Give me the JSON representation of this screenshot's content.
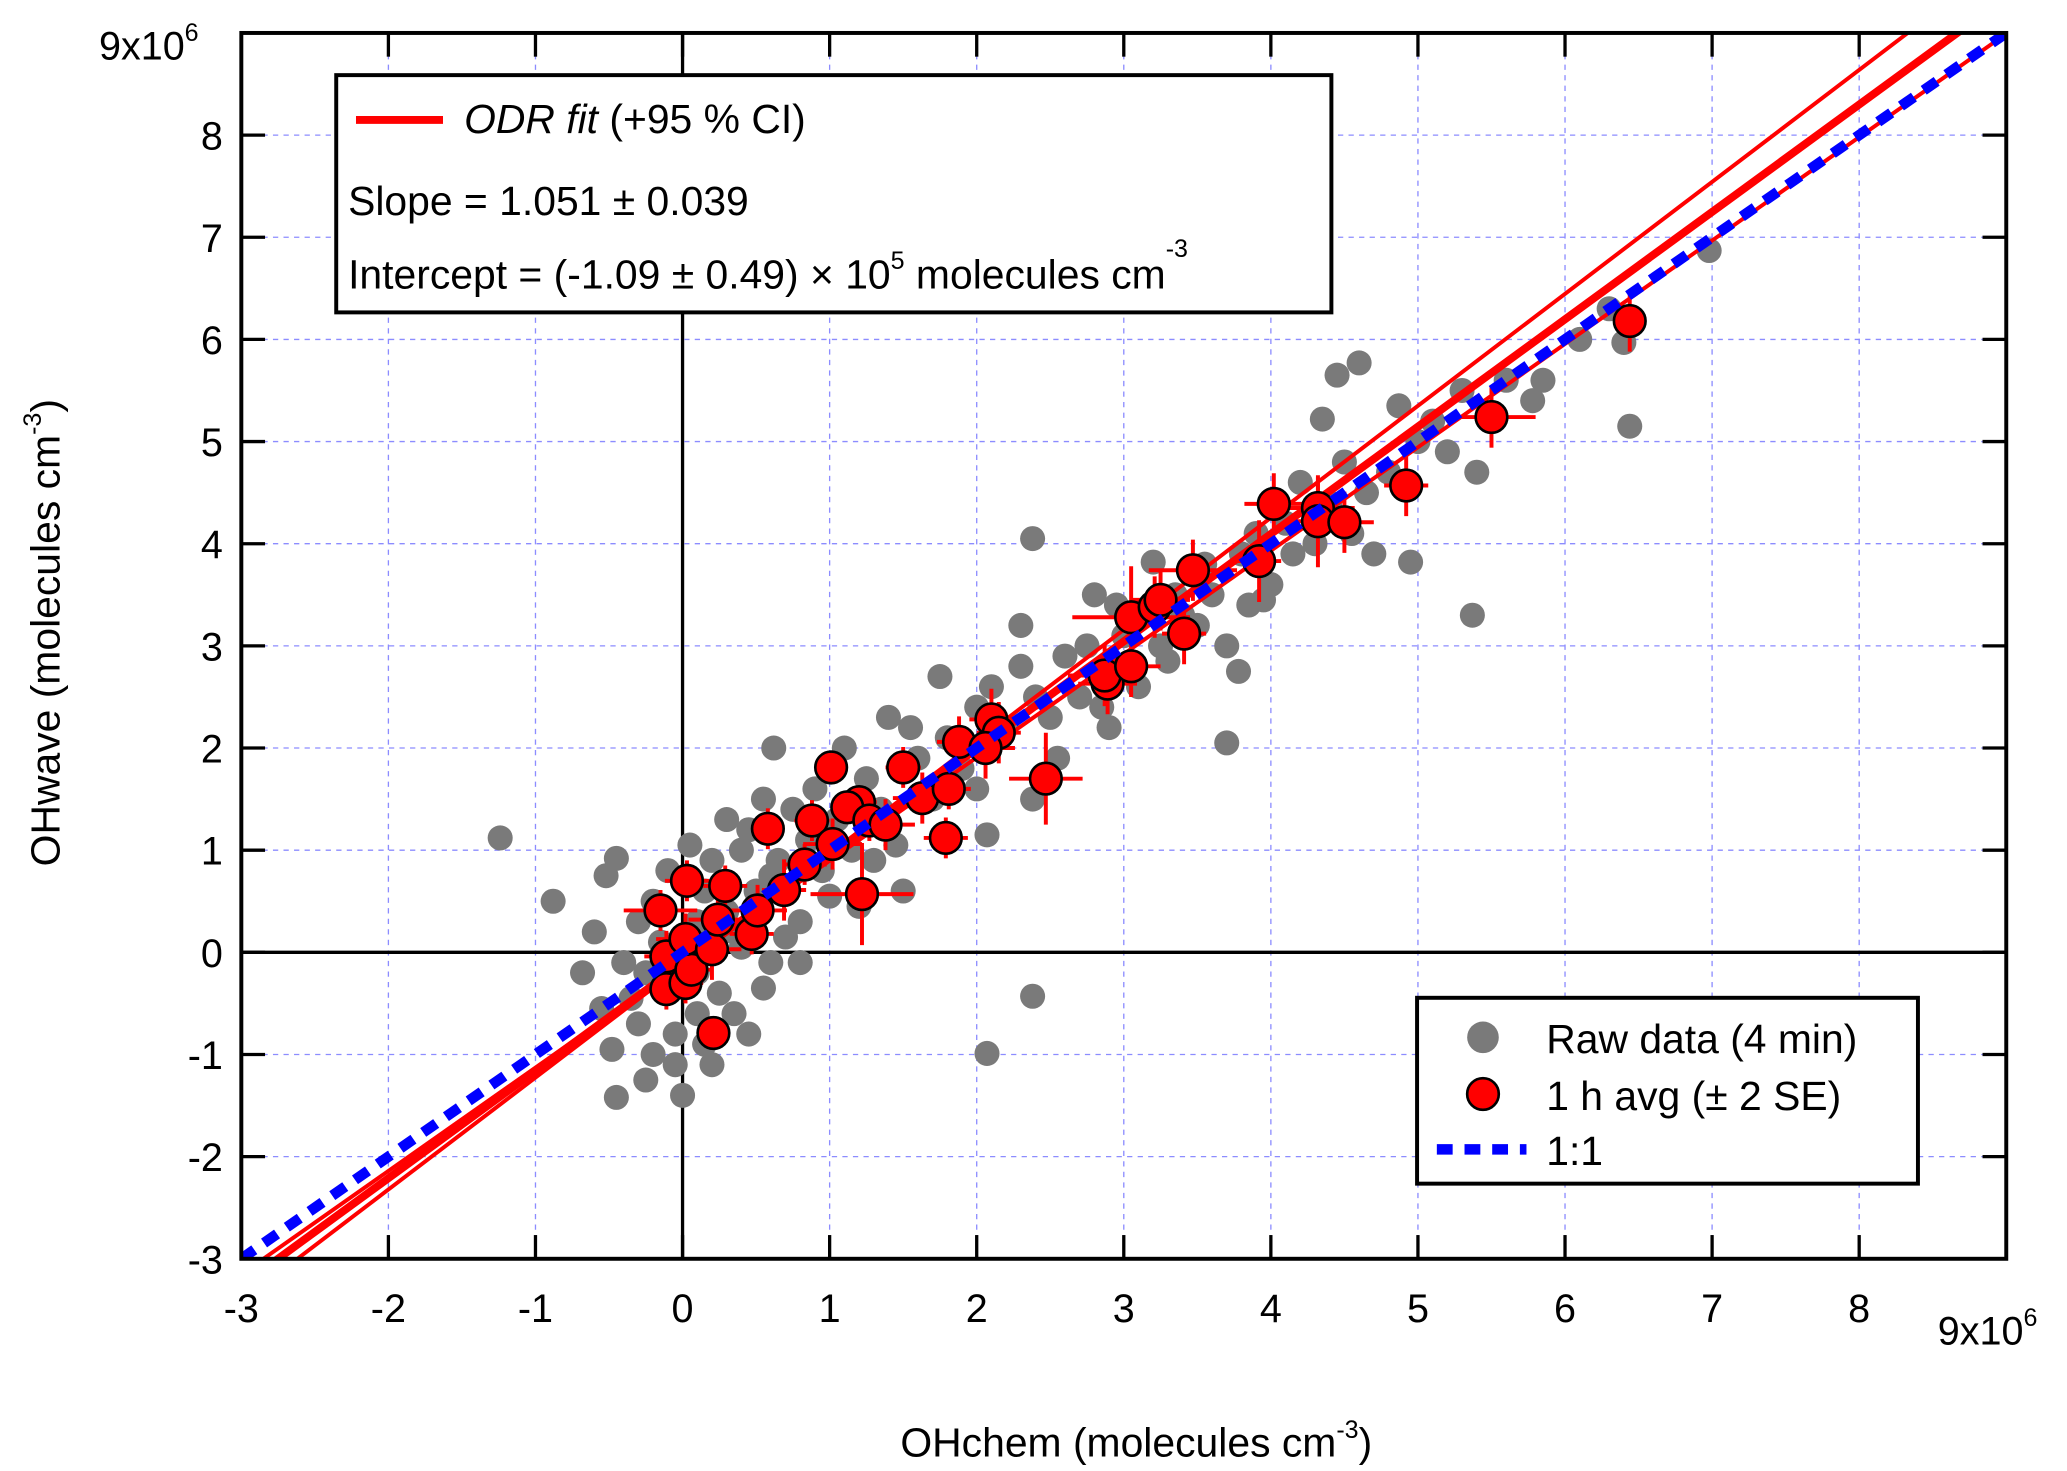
{
  "chart_data": {
    "type": "scatter",
    "title": "",
    "xlabel": "OHchem (molecules cm",
    "xlabel_exp": "-3",
    "xlabel_close": ")",
    "ylabel": "OHwave (molecules cm",
    "ylabel_exp": "-3",
    "ylabel_close": ")",
    "xlim": [
      -3,
      9
    ],
    "ylim": [
      -3,
      9
    ],
    "x_ticks": [
      -3,
      -2,
      -1,
      0,
      1,
      2,
      3,
      4,
      5,
      6,
      7,
      8
    ],
    "y_ticks": [
      -3,
      -2,
      -1,
      0,
      1,
      2,
      3,
      4,
      5,
      6,
      7,
      8
    ],
    "x_multiplier": {
      "base": "9x10",
      "exp": "6"
    },
    "y_multiplier": {
      "base": "9x10",
      "exp": "6"
    },
    "grid": true,
    "colors": {
      "raw": "#7a7a7a",
      "avg": "#ff0000",
      "fit": "#ff0000",
      "one_to_one": "#0000ff",
      "grid": "#8c8cff"
    },
    "series": [
      {
        "name": "Raw data (4 min)",
        "type": "scatter",
        "points": [
          [
            -1.24,
            1.12
          ],
          [
            -0.88,
            0.5
          ],
          [
            -0.52,
            0.75
          ],
          [
            -0.45,
            0.92
          ],
          [
            -0.45,
            -1.42
          ],
          [
            -0.68,
            -0.2
          ],
          [
            -0.48,
            -0.95
          ],
          [
            0.0,
            -1.4
          ],
          [
            -0.05,
            -1.1
          ],
          [
            -0.2,
            -1.0
          ],
          [
            -0.3,
            -0.7
          ],
          [
            -0.35,
            -0.45
          ],
          [
            -0.25,
            -0.2
          ],
          [
            -0.15,
            0.1
          ],
          [
            -0.3,
            0.3
          ],
          [
            -0.2,
            0.5
          ],
          [
            -0.1,
            0.8
          ],
          [
            0.05,
            1.05
          ],
          [
            0.2,
            0.9
          ],
          [
            0.15,
            0.6
          ],
          [
            0.3,
            0.4
          ],
          [
            0.1,
            0.3
          ],
          [
            0.0,
            0.0
          ],
          [
            0.1,
            -0.2
          ],
          [
            0.25,
            -0.4
          ],
          [
            0.35,
            -0.6
          ],
          [
            0.45,
            -0.8
          ],
          [
            0.1,
            -0.6
          ],
          [
            -0.05,
            -0.8
          ],
          [
            0.2,
            -1.1
          ],
          [
            0.55,
            -0.35
          ],
          [
            0.6,
            -0.1
          ],
          [
            0.7,
            0.15
          ],
          [
            0.4,
            0.05
          ],
          [
            0.5,
            0.6
          ],
          [
            0.65,
            0.9
          ],
          [
            0.4,
            1.0
          ],
          [
            0.3,
            1.3
          ],
          [
            0.55,
            1.5
          ],
          [
            0.62,
            2.0
          ],
          [
            0.75,
            1.4
          ],
          [
            0.85,
            1.1
          ],
          [
            0.95,
            0.8
          ],
          [
            0.8,
            0.3
          ],
          [
            0.9,
            1.6
          ],
          [
            1.05,
            1.3
          ],
          [
            1.15,
            1.0
          ],
          [
            1.25,
            1.7
          ],
          [
            1.35,
            1.4
          ],
          [
            1.45,
            1.05
          ],
          [
            1.5,
            0.6
          ],
          [
            1.6,
            1.9
          ],
          [
            1.7,
            1.5
          ],
          [
            1.75,
            2.7
          ],
          [
            1.8,
            2.1
          ],
          [
            1.9,
            1.8
          ],
          [
            2.0,
            2.4
          ],
          [
            2.07,
            1.15
          ],
          [
            2.1,
            2.6
          ],
          [
            2.2,
            2.2
          ],
          [
            2.3,
            2.8
          ],
          [
            2.3,
            3.2
          ],
          [
            2.38,
            1.5
          ],
          [
            2.4,
            2.5
          ],
          [
            2.5,
            2.3
          ],
          [
            2.6,
            2.9
          ],
          [
            2.7,
            2.5
          ],
          [
            2.75,
            3.0
          ],
          [
            2.85,
            2.4
          ],
          [
            2.9,
            2.2
          ],
          [
            2.95,
            3.4
          ],
          [
            3.0,
            3.1
          ],
          [
            3.1,
            2.6
          ],
          [
            3.2,
            3.82
          ],
          [
            3.25,
            3.0
          ],
          [
            3.35,
            3.5
          ],
          [
            3.4,
            3.3
          ],
          [
            3.5,
            3.2
          ],
          [
            3.55,
            3.8
          ],
          [
            3.6,
            3.5
          ],
          [
            3.7,
            2.05
          ],
          [
            3.7,
            3.0
          ],
          [
            3.78,
            2.75
          ],
          [
            3.8,
            3.9
          ],
          [
            3.85,
            3.4
          ],
          [
            3.9,
            4.1
          ],
          [
            4.0,
            3.6
          ],
          [
            4.1,
            4.2
          ],
          [
            4.15,
            3.9
          ],
          [
            4.2,
            4.6
          ],
          [
            4.3,
            4.0
          ],
          [
            4.35,
            5.22
          ],
          [
            4.4,
            4.4
          ],
          [
            4.45,
            5.65
          ],
          [
            4.5,
            4.8
          ],
          [
            4.55,
            4.1
          ],
          [
            4.6,
            5.77
          ],
          [
            4.65,
            4.5
          ],
          [
            4.7,
            3.9
          ],
          [
            4.8,
            4.7
          ],
          [
            4.87,
            5.35
          ],
          [
            4.95,
            3.82
          ],
          [
            5.0,
            5.0
          ],
          [
            5.1,
            5.2
          ],
          [
            5.2,
            4.9
          ],
          [
            5.3,
            5.5
          ],
          [
            5.37,
            3.3
          ],
          [
            5.4,
            4.7
          ],
          [
            5.6,
            5.6
          ],
          [
            5.78,
            5.4
          ],
          [
            5.85,
            5.6
          ],
          [
            6.1,
            6.0
          ],
          [
            6.3,
            6.3
          ],
          [
            6.4,
            5.97
          ],
          [
            6.44,
            5.15
          ],
          [
            6.98,
            6.87
          ],
          [
            2.38,
            4.05
          ],
          [
            2.38,
            -0.43
          ],
          [
            2.07,
            -0.99
          ],
          [
            1.2,
            0.45
          ],
          [
            0.8,
            -0.1
          ],
          [
            -0.4,
            -0.1
          ],
          [
            0.35,
            0.2
          ],
          [
            0.6,
            0.75
          ],
          [
            1.0,
            0.55
          ],
          [
            1.3,
            0.9
          ],
          [
            1.55,
            2.2
          ],
          [
            2.55,
            1.9
          ],
          [
            2.8,
            3.5
          ],
          [
            -0.6,
            0.2
          ],
          [
            -0.55,
            -0.55
          ],
          [
            0.15,
            -0.9
          ],
          [
            -0.25,
            -1.25
          ],
          [
            0.45,
            1.2
          ],
          [
            1.1,
            2.0
          ],
          [
            1.4,
            2.3
          ],
          [
            2.0,
            1.6
          ],
          [
            3.3,
            2.85
          ],
          [
            3.95,
            3.45
          ]
        ]
      },
      {
        "name": "1 h avg (± 2 SE)",
        "type": "scatter_errorbar",
        "points": [
          [
            -0.15,
            0.41,
            0.25,
            0.2
          ],
          [
            0.03,
            0.7,
            0.15,
            0.2
          ],
          [
            0.29,
            0.65,
            0.15,
            0.2
          ],
          [
            0.58,
            1.21,
            0.1,
            0.2
          ],
          [
            1.01,
            1.81,
            0.1,
            0.15
          ],
          [
            0.88,
            1.29,
            0.12,
            0.2
          ],
          [
            1.2,
            1.47,
            0.12,
            0.15
          ],
          [
            1.12,
            1.42,
            0.1,
            0.15
          ],
          [
            1.5,
            1.81,
            0.12,
            0.2
          ],
          [
            1.22,
            0.57,
            0.35,
            0.5
          ],
          [
            1.79,
            1.12,
            0.15,
            0.2
          ],
          [
            0.47,
            0.18,
            0.15,
            0.2
          ],
          [
            0.21,
            -0.79,
            0.1,
            0.15
          ],
          [
            -0.11,
            -0.04,
            0.15,
            0.25
          ],
          [
            -0.11,
            -0.36,
            0.12,
            0.2
          ],
          [
            0.02,
            -0.3,
            0.12,
            0.2
          ],
          [
            0.06,
            -0.17,
            0.15,
            0.2
          ],
          [
            0.02,
            0.13,
            0.2,
            0.25
          ],
          [
            0.2,
            0.03,
            0.2,
            0.3
          ],
          [
            0.24,
            0.32,
            0.2,
            0.25
          ],
          [
            0.51,
            0.41,
            0.2,
            0.25
          ],
          [
            0.69,
            0.61,
            0.15,
            0.3
          ],
          [
            0.83,
            0.86,
            0.15,
            0.2
          ],
          [
            1.02,
            1.06,
            0.2,
            0.25
          ],
          [
            1.27,
            1.29,
            0.15,
            0.2
          ],
          [
            1.38,
            1.25,
            0.2,
            0.25
          ],
          [
            1.63,
            1.51,
            0.2,
            0.25
          ],
          [
            1.81,
            1.6,
            0.15,
            0.2
          ],
          [
            1.88,
            2.06,
            0.15,
            0.25
          ],
          [
            2.1,
            2.28,
            0.15,
            0.3
          ],
          [
            2.15,
            2.15,
            0.15,
            0.3
          ],
          [
            2.06,
            2.0,
            0.2,
            0.3
          ],
          [
            2.47,
            1.7,
            0.25,
            0.45
          ],
          [
            2.89,
            2.63,
            0.2,
            0.3
          ],
          [
            2.87,
            2.71,
            0.25,
            0.3
          ],
          [
            3.05,
            3.28,
            0.4,
            0.5
          ],
          [
            3.21,
            3.38,
            0.15,
            0.3
          ],
          [
            3.05,
            2.8,
            0.2,
            0.3
          ],
          [
            3.41,
            3.12,
            0.15,
            0.3
          ],
          [
            3.47,
            3.74,
            0.3,
            0.3
          ],
          [
            3.92,
            3.83,
            0.15,
            0.4
          ],
          [
            4.02,
            4.39,
            0.2,
            0.3
          ],
          [
            4.32,
            4.35,
            0.25,
            0.3
          ],
          [
            4.32,
            4.22,
            0.2,
            0.45
          ],
          [
            4.5,
            4.21,
            0.2,
            0.3
          ],
          [
            4.92,
            4.57,
            0.15,
            0.3
          ],
          [
            5.5,
            5.24,
            0.3,
            0.3
          ],
          [
            6.44,
            6.18,
            0.1,
            0.3
          ],
          [
            3.25,
            3.45,
            0.2,
            0.3
          ]
        ]
      }
    ],
    "fit": {
      "name": "ODR fit",
      "slope": 1.051,
      "intercept": -0.109
    },
    "fit_ci": [
      {
        "slope": 1.096,
        "intercept": -0.13
      },
      {
        "slope": 1.012,
        "intercept": -0.116
      }
    ],
    "one_to_one": {
      "name": "1:1",
      "slope": 1,
      "intercept": 0
    },
    "legend_fit": {
      "fit_label_italic": "ODR fit",
      "fit_label_rest": " (+95 % CI)",
      "slope_text": "Slope = 1.051 ± 0.039",
      "intercept_text": "Intercept = (-1.09 ± 0.49) × 10",
      "intercept_exp": "5",
      "intercept_unit": " molecules cm",
      "unit_exp": "-3",
      "placement": "top-left"
    },
    "legend_series": {
      "raw_label": "Raw data (4 min)",
      "avg_label": "1 h avg (± 2 SE)",
      "one_label": "1:1",
      "placement": "bottom-right"
    }
  }
}
